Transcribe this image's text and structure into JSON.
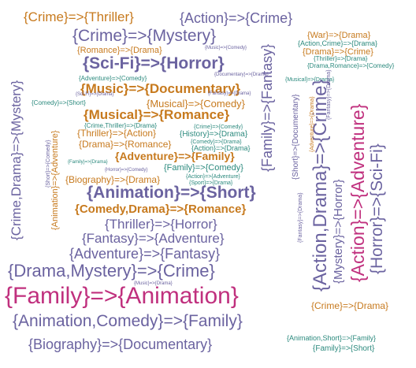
{
  "cloud": {
    "colors": {
      "purple": "#6b63a0",
      "orange": "#c77a1e",
      "magenta": "#c0307e",
      "teal": "#2c8a7e"
    },
    "words": {
      "family_animation": "{Family}=>{Animation}",
      "animation_comedy_family": "{Animation,Comedy}=>{Family}",
      "animation_short": "{Animation}=>{Short}",
      "drama_mystery_crime": "{Drama,Mystery}=>{Crime}",
      "biography_documentary": "{Biography}=>{Documentary}",
      "adventure_fantasy": "{Adventure}=>{Fantasy}",
      "fantasy_adventure": "{Fantasy}=>{Adventure}",
      "thriller_horror": "{Thriller}=>{Horror}",
      "comedy_drama_romance": "{Comedy,Drama}=>{Romance}",
      "scifi_horror": "{Sci-Fi}=>{Horror}",
      "crime_mystery": "{Crime}=>{Mystery}",
      "music_documentary": "{Music}=>{Documentary}",
      "musical_romance": "{Musical}=>{Romance}",
      "crime_thriller": "{Crime}=>{Thriller}",
      "action_crime": "{Action}=>{Crime}",
      "adventure_family": "{Adventure}=>{Family}",
      "musical_comedy": "{Musical}=>{Comedy}",
      "thriller_action": "{Thriller}=>{Action}",
      "drama_romance": "{Drama}=>{Romance}",
      "biography_drama": "{Biography}=>{Drama}",
      "family_comedy": "{Family}=>{Comedy}",
      "romance_drama": "{Romance}=>{Drama}",
      "war_drama": "{War}=>{Drama}",
      "drama_crime": "{Drama}=>{Crime}",
      "crime_drama_right": "{Crime}=>{Drama}",
      "history_drama": "{History}=>{Drama}",
      "crime_thriller_drama": "{Crime,Thriller}=>{Drama}",
      "adventure_comedy": "{Adventure}=>{Comedy}",
      "comedy_short": "{Comedy}=>{Short}",
      "action_crime_drama": "{Action,Crime}=>{Drama}",
      "thriller_drama": "{Thriller}=>{Drama}",
      "drama_romance_comedy": "{Drama,Romance}=>{Comedy}",
      "musical_drama": "{Musical}=>{Drama}",
      "action_drama": "{Action}=>{Drama}",
      "crime_comedy": "{Crime}=>{Comedy}",
      "comedy_drama": "{Comedy}=>{Drama}",
      "action_adventure_tiny": "{Action}=>{Adventure}",
      "action_comedy": "{Action}=>{Comedy}",
      "sport_drama": "{Sport}=>{Drama}",
      "horror_comedy": "{Horror}=>{Comedy}",
      "family_drama": "{Family}=>{Drama}",
      "music_drama": "{Music}=>{Drama}",
      "music_comedy": "{Music}=>{Comedy}",
      "scifi_drama": "{Sci-Fi}=>{Drama}",
      "animation_short_family": "{Animation,Short}=>{Family}",
      "family_short": "{Family}=>{Short}",
      "crime_drama_mystery": "{Crime,Drama}=>{Mystery}",
      "family_fantasy": "{Family}=>{Fantasy}",
      "animation_adventure": "{Animation}=>{Adventure}",
      "short_comedy": "{Short}=>{Comedy}",
      "short_documentary": "{Short}=>{Documentary}",
      "action_drama_crime": "{Action,Drama}=>{Crime}",
      "mystery_horror": "{Mystery}=>{Horror}",
      "action_adventure": "{Action}=>{Adventure}",
      "horror_scifi": "{Horror}=>{Sci-Fi}",
      "fantasy_drama": "{Fantasy}=>{Drama}",
      "adventure_drama": "{Adventure}=>{Drama}",
      "documentary_drama": "{Documentary}=>{Drama}"
    }
  }
}
